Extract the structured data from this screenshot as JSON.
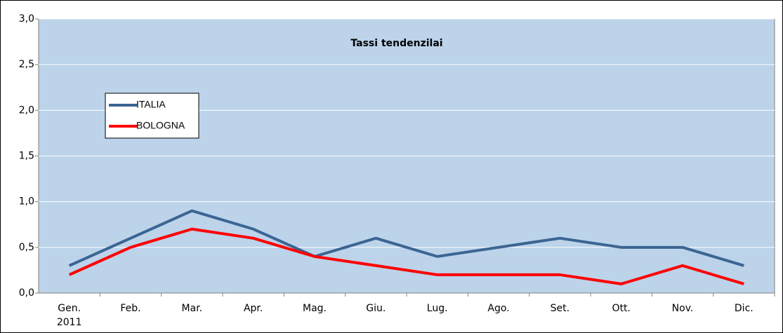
{
  "chart_data": {
    "type": "line",
    "title": "Tassi tendenzilai",
    "categories": [
      "Gen.",
      "Feb.",
      "Mar.",
      "Apr.",
      "Mag.",
      "Giu.",
      "Lug.",
      "Ago.",
      "Set.",
      "Ott.",
      "Nov.",
      "Dic."
    ],
    "first_category_year": "2011",
    "series": [
      {
        "name": "ITALIA",
        "color": "#3b6593",
        "values": [
          0.3,
          0.6,
          0.9,
          0.7,
          0.4,
          0.6,
          0.4,
          0.5,
          0.6,
          0.5,
          0.5,
          0.3
        ]
      },
      {
        "name": "BOLOGNA",
        "color": "#ff0000",
        "values": [
          0.2,
          0.5,
          0.7,
          0.6,
          0.4,
          0.3,
          0.2,
          0.2,
          0.2,
          0.1,
          0.3,
          0.1
        ]
      }
    ],
    "ylim": [
      0,
      3
    ],
    "yticks": [
      {
        "value": 0,
        "label": "0,0"
      },
      {
        "value": 0.5,
        "label": "0,5"
      },
      {
        "value": 1,
        "label": "1,0"
      },
      {
        "value": 1.5,
        "label": "1,5"
      },
      {
        "value": 2,
        "label": "2,0"
      },
      {
        "value": 2.5,
        "label": "2,5"
      },
      {
        "value": 3,
        "label": "3,0"
      }
    ],
    "grid": true,
    "legend": "upper-left"
  }
}
